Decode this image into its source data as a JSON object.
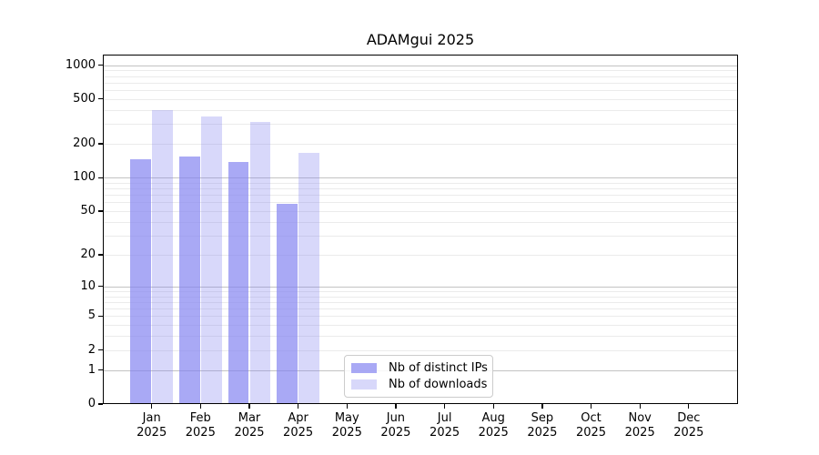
{
  "chart_data": {
    "type": "bar",
    "title": "ADAMgui 2025",
    "scale": "log1p",
    "categories": [
      "Jan",
      "Feb",
      "Mar",
      "Apr",
      "May",
      "Jun",
      "Jul",
      "Aug",
      "Sep",
      "Oct",
      "Nov",
      "Dec"
    ],
    "category_year": "2025",
    "series": [
      {
        "name": "Nb of distinct IPs",
        "color": "rgba(130,130,240,0.69)",
        "values": [
          145,
          153,
          137,
          58,
          0,
          0,
          0,
          0,
          0,
          0,
          0,
          0
        ]
      },
      {
        "name": "Nb of downloads",
        "color": "rgba(130,130,240,0.31)",
        "values": [
          401,
          349,
          314,
          166,
          0,
          0,
          0,
          0,
          0,
          0,
          0,
          0
        ]
      }
    ],
    "yticks": [
      0,
      1,
      2,
      5,
      10,
      20,
      50,
      100,
      200,
      500,
      1000
    ],
    "major_gridlines": [
      1,
      10,
      100,
      1000
    ],
    "minor_gridlines": [
      2,
      3,
      4,
      5,
      6,
      7,
      8,
      9,
      20,
      30,
      40,
      50,
      60,
      70,
      80,
      90,
      200,
      300,
      400,
      500,
      600,
      700,
      800,
      900
    ],
    "ylim": [
      0,
      1250
    ],
    "xlabel": "",
    "ylabel": "",
    "grid": true,
    "legend_position": "lower-center"
  },
  "legend": {
    "items": [
      {
        "label": "Nb of distinct IPs",
        "color": "rgba(130,130,240,0.69)"
      },
      {
        "label": "Nb of downloads",
        "color": "rgba(130,130,240,0.31)"
      }
    ]
  },
  "colors": {
    "bar_base": "#8282f0",
    "major_grid": "#c3c3c3",
    "minor_grid": "#ebebeb",
    "spine": "#000000",
    "background": "#ffffff"
  }
}
